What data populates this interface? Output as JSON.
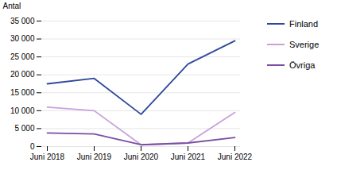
{
  "chart_data": {
    "type": "line",
    "ylabel": "Antal",
    "categories": [
      "Juni 2018",
      "Juni 2019",
      "Juni 2020",
      "Juni 2021",
      "Juni 2022"
    ],
    "series": [
      {
        "name": "Finland",
        "color": "#2E4799",
        "values": [
          17500,
          19000,
          9000,
          23000,
          29500
        ]
      },
      {
        "name": "Sverige",
        "color": "#C9A0DC",
        "values": [
          11000,
          10000,
          500,
          1000,
          9500
        ]
      },
      {
        "name": "Övriga",
        "color": "#7B4EA0",
        "values": [
          3800,
          3500,
          500,
          1000,
          2500
        ]
      }
    ],
    "ylim": [
      0,
      35000
    ],
    "yticks": [
      0,
      {
        "value": 5000,
        "label": "5 000"
      },
      {
        "value": 10000,
        "label": "10 000"
      },
      {
        "value": 15000,
        "label": "15 000"
      },
      {
        "value": 20000,
        "label": "20 000"
      },
      {
        "value": 25000,
        "label": "25 000"
      },
      {
        "value": 30000,
        "label": "30 000"
      },
      {
        "value": 35000,
        "label": "35 000"
      }
    ],
    "grid": true,
    "legend": "right"
  }
}
